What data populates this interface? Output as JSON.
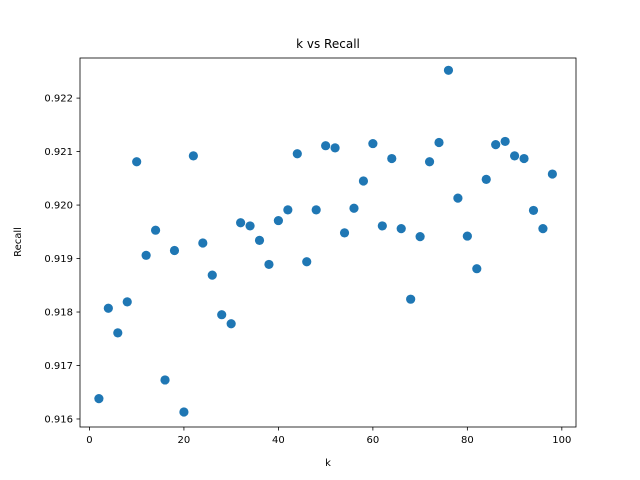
{
  "chart_data": {
    "type": "scatter",
    "title": "k vs Recall",
    "xlabel": "k",
    "ylabel": "Recall",
    "xlim": [
      -2,
      103
    ],
    "ylim": [
      0.91585,
      0.92275
    ],
    "xticks": [
      0,
      20,
      40,
      60,
      80,
      100
    ],
    "xtick_labels": [
      "0",
      "20",
      "40",
      "60",
      "80",
      "100"
    ],
    "yticks": [
      0.916,
      0.917,
      0.918,
      0.919,
      0.92,
      0.921,
      0.922
    ],
    "ytick_labels": [
      "0.916",
      "0.917",
      "0.918",
      "0.919",
      "0.920",
      "0.921",
      "0.922"
    ],
    "grid": false,
    "marker_color": "#1f77b4",
    "x": [
      2,
      4,
      6,
      8,
      10,
      12,
      14,
      16,
      18,
      20,
      22,
      24,
      26,
      28,
      30,
      32,
      34,
      36,
      38,
      40,
      42,
      44,
      46,
      48,
      50,
      52,
      54,
      56,
      58,
      60,
      62,
      64,
      66,
      68,
      70,
      72,
      74,
      76,
      78,
      80,
      82,
      84,
      86,
      88,
      90,
      92,
      94,
      96,
      98
    ],
    "y": [
      0.91638,
      0.91807,
      0.91761,
      0.91819,
      0.92081,
      0.91906,
      0.91953,
      0.91673,
      0.91915,
      0.91613,
      0.92092,
      0.91929,
      0.91869,
      0.91795,
      0.91778,
      0.91967,
      0.91961,
      0.91934,
      0.91889,
      0.91971,
      0.91991,
      0.92096,
      0.91894,
      0.91991,
      0.92111,
      0.92107,
      0.91948,
      0.91994,
      0.92045,
      0.92115,
      0.91961,
      0.92087,
      0.91956,
      0.91824,
      0.91941,
      0.92081,
      0.92117,
      0.92252,
      0.92013,
      0.91942,
      0.91881,
      0.92048,
      0.92113,
      0.92119,
      0.92092,
      0.92087,
      0.9199,
      0.91956,
      0.92058
    ]
  }
}
